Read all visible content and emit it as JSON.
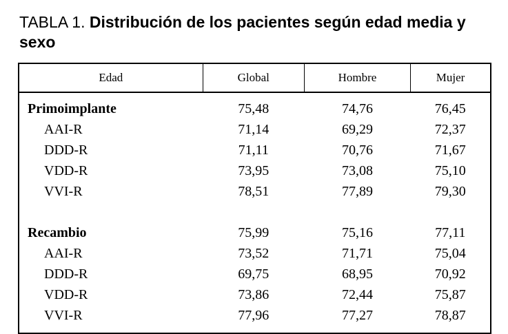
{
  "title": {
    "label": "TABLA 1.",
    "text": "Distribución de los pacientes según edad media y sexo"
  },
  "table": {
    "headers": [
      "Edad",
      "Global",
      "Hombre",
      "Mujer"
    ],
    "rows": [
      {
        "label": "Primoimplante",
        "global": "75,48",
        "hombre": "74,76",
        "mujer": "76,45"
      },
      {
        "label": "AAI-R",
        "global": "71,14",
        "hombre": "69,29",
        "mujer": "72,37"
      },
      {
        "label": "DDD-R",
        "global": "71,11",
        "hombre": "70,76",
        "mujer": "71,67"
      },
      {
        "label": "VDD-R",
        "global": "73,95",
        "hombre": "73,08",
        "mujer": "75,10"
      },
      {
        "label": "VVI-R",
        "global": "78,51",
        "hombre": "77,89",
        "mujer": "79,30"
      },
      {
        "label": "Recambio",
        "global": "75,99",
        "hombre": "75,16",
        "mujer": "77,11"
      },
      {
        "label": "AAI-R",
        "global": "73,52",
        "hombre": "71,71",
        "mujer": "75,04"
      },
      {
        "label": "DDD-R",
        "global": "69,75",
        "hombre": "68,95",
        "mujer": "70,92"
      },
      {
        "label": "VDD-R",
        "global": "73,86",
        "hombre": "72,44",
        "mujer": "75,87"
      },
      {
        "label": "VVI-R",
        "global": "77,96",
        "hombre": "77,27",
        "mujer": "78,87"
      }
    ]
  }
}
